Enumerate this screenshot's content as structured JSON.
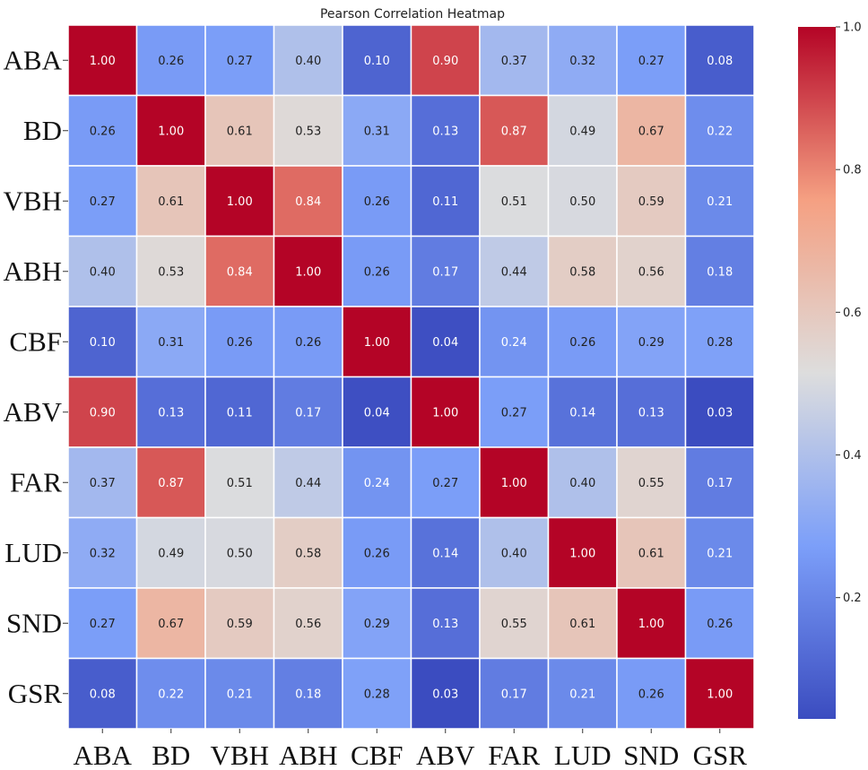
{
  "chart_data": {
    "type": "heatmap",
    "title": "Pearson Correlation Heatmap",
    "x_labels": [
      "ABA",
      "BD",
      "VBH",
      "ABH",
      "CBF",
      "ABV",
      "FAR",
      "LUD",
      "SND",
      "GSR"
    ],
    "y_labels": [
      "ABA",
      "BD",
      "VBH",
      "ABH",
      "CBF",
      "ABV",
      "FAR",
      "LUD",
      "SND",
      "GSR"
    ],
    "values": [
      [
        1.0,
        0.26,
        0.27,
        0.4,
        0.1,
        0.9,
        0.37,
        0.32,
        0.27,
        0.08
      ],
      [
        0.26,
        1.0,
        0.61,
        0.53,
        0.31,
        0.13,
        0.87,
        0.49,
        0.67,
        0.22
      ],
      [
        0.27,
        0.61,
        1.0,
        0.84,
        0.26,
        0.11,
        0.51,
        0.5,
        0.59,
        0.21
      ],
      [
        0.4,
        0.53,
        0.84,
        1.0,
        0.26,
        0.17,
        0.44,
        0.58,
        0.56,
        0.18
      ],
      [
        0.1,
        0.31,
        0.26,
        0.26,
        1.0,
        0.04,
        0.24,
        0.26,
        0.29,
        0.28
      ],
      [
        0.9,
        0.13,
        0.11,
        0.17,
        0.04,
        1.0,
        0.27,
        0.14,
        0.13,
        0.03
      ],
      [
        0.37,
        0.87,
        0.51,
        0.44,
        0.24,
        0.27,
        1.0,
        0.4,
        0.55,
        0.17
      ],
      [
        0.32,
        0.49,
        0.5,
        0.58,
        0.26,
        0.14,
        0.4,
        1.0,
        0.61,
        0.21
      ],
      [
        0.27,
        0.67,
        0.59,
        0.56,
        0.29,
        0.13,
        0.55,
        0.61,
        1.0,
        0.26
      ],
      [
        0.08,
        0.22,
        0.21,
        0.18,
        0.28,
        0.03,
        0.17,
        0.21,
        0.26,
        1.0
      ]
    ],
    "value_format": "2 decimals",
    "colormap": "coolwarm",
    "color_range": [
      0.03,
      1.0
    ],
    "colorbar": {
      "position": "right",
      "ticks": [
        0.2,
        0.4,
        0.6,
        0.8,
        1.0
      ],
      "tick_labels": [
        "0.2",
        "0.4",
        "0.6",
        "0.8",
        "1.0"
      ]
    },
    "grid": false,
    "cell_borders": "white"
  }
}
